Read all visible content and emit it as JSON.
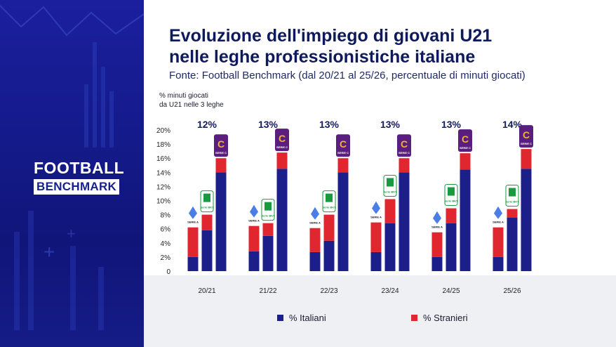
{
  "brand": {
    "line1": "FOOTBALL",
    "line2": "BENCHMARK"
  },
  "title_line1": "Evoluzione dell'impiego di giovani U21",
  "title_line2": "nelle leghe professionistiche italiane",
  "subtitle": "Fonte: Football Benchmark (dal 20/21 al 25/26, percentuale di minuti giocati)",
  "ylabel_line1": "% minuti giocati",
  "ylabel_line2": "da U21 nelle 3 leghe",
  "legend": {
    "italiani": "% Italiani",
    "stranieri": "% Stranieri"
  },
  "logos": {
    "serie_a": "SERIE A",
    "serie_b": "Serie BKT",
    "serie_c": "SERIE C"
  },
  "colors": {
    "italiani": "#1c1f8a",
    "stranieri": "#e0262f",
    "serie_a": "#4a7ee6",
    "serie_b": "#1a9a3f",
    "serie_c": "#5a1e7e"
  },
  "chart_data": {
    "type": "bar",
    "stacked": true,
    "categories": [
      "20/21",
      "21/22",
      "22/23",
      "23/24",
      "24/25",
      "25/26"
    ],
    "groups": [
      "Serie A",
      "Serie B",
      "Serie C"
    ],
    "totals": [
      "12%",
      "13%",
      "13%",
      "13%",
      "13%",
      "14%"
    ],
    "series": [
      {
        "name": "% Italiani",
        "values": [
          [
            2.0,
            5.8,
            14.0
          ],
          [
            2.8,
            5.0,
            14.5
          ],
          [
            2.7,
            4.3,
            14.0
          ],
          [
            2.7,
            6.8,
            14.0
          ],
          [
            2.0,
            6.8,
            14.4
          ],
          [
            2.0,
            7.6,
            14.5
          ]
        ]
      },
      {
        "name": "% Stranieri",
        "values": [
          [
            4.2,
            2.2,
            2.0
          ],
          [
            3.6,
            1.8,
            2.3
          ],
          [
            3.4,
            3.7,
            2.0
          ],
          [
            4.2,
            3.4,
            2.0
          ],
          [
            3.5,
            2.1,
            2.3
          ],
          [
            4.2,
            1.2,
            2.8
          ]
        ]
      }
    ],
    "yticks": [
      "0",
      "2%",
      "4%",
      "6%",
      "8%",
      "10%",
      "12%",
      "14%",
      "16%",
      "18%",
      "20%"
    ],
    "ylim": [
      0,
      20
    ],
    "grid": false,
    "legend_position": "bottom"
  }
}
